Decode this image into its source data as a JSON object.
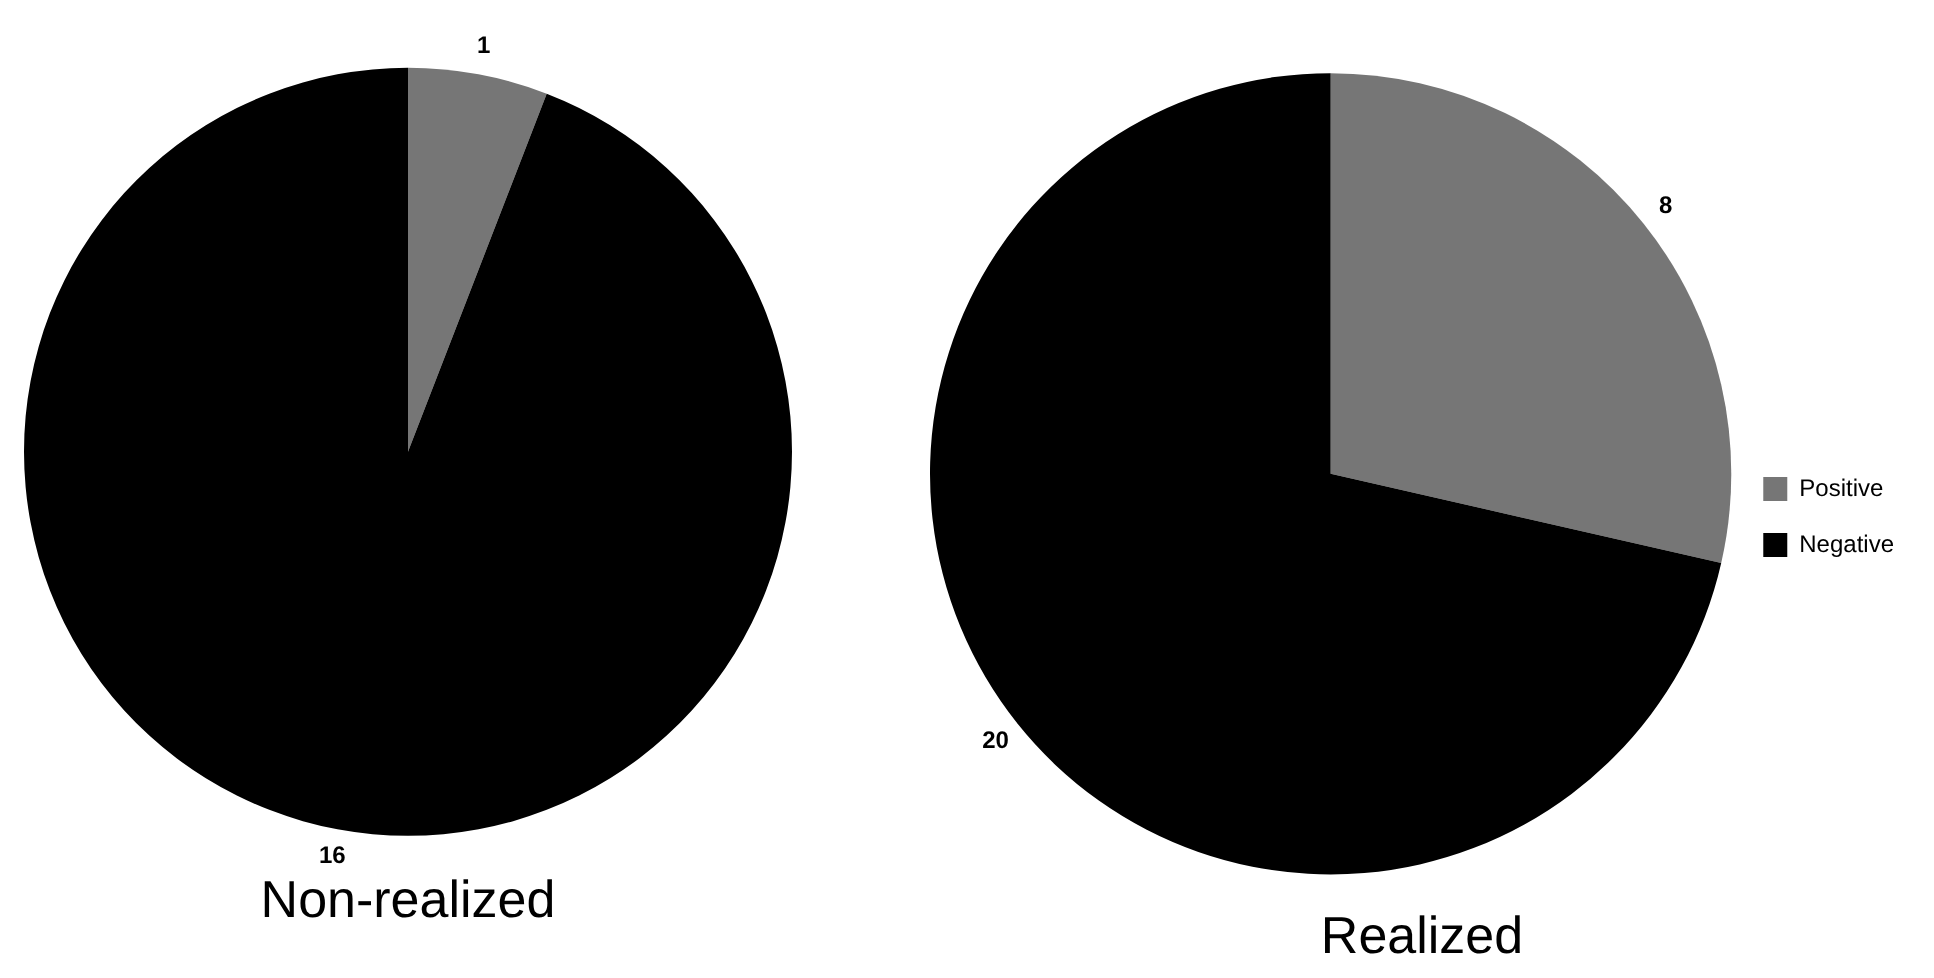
{
  "chart_data": [
    {
      "type": "pie",
      "title": "Non-realized",
      "categories": [
        null,
        null
      ],
      "values": [
        1,
        16
      ],
      "colors": [
        "#767676",
        "#000000"
      ],
      "data_labels": true,
      "legend": false
    },
    {
      "type": "pie",
      "title": "Realized",
      "categories": [
        "Positive",
        "Negative"
      ],
      "values": [
        8,
        20
      ],
      "colors": [
        "#767676",
        "#000000"
      ],
      "data_labels": true,
      "legend": "right"
    }
  ]
}
